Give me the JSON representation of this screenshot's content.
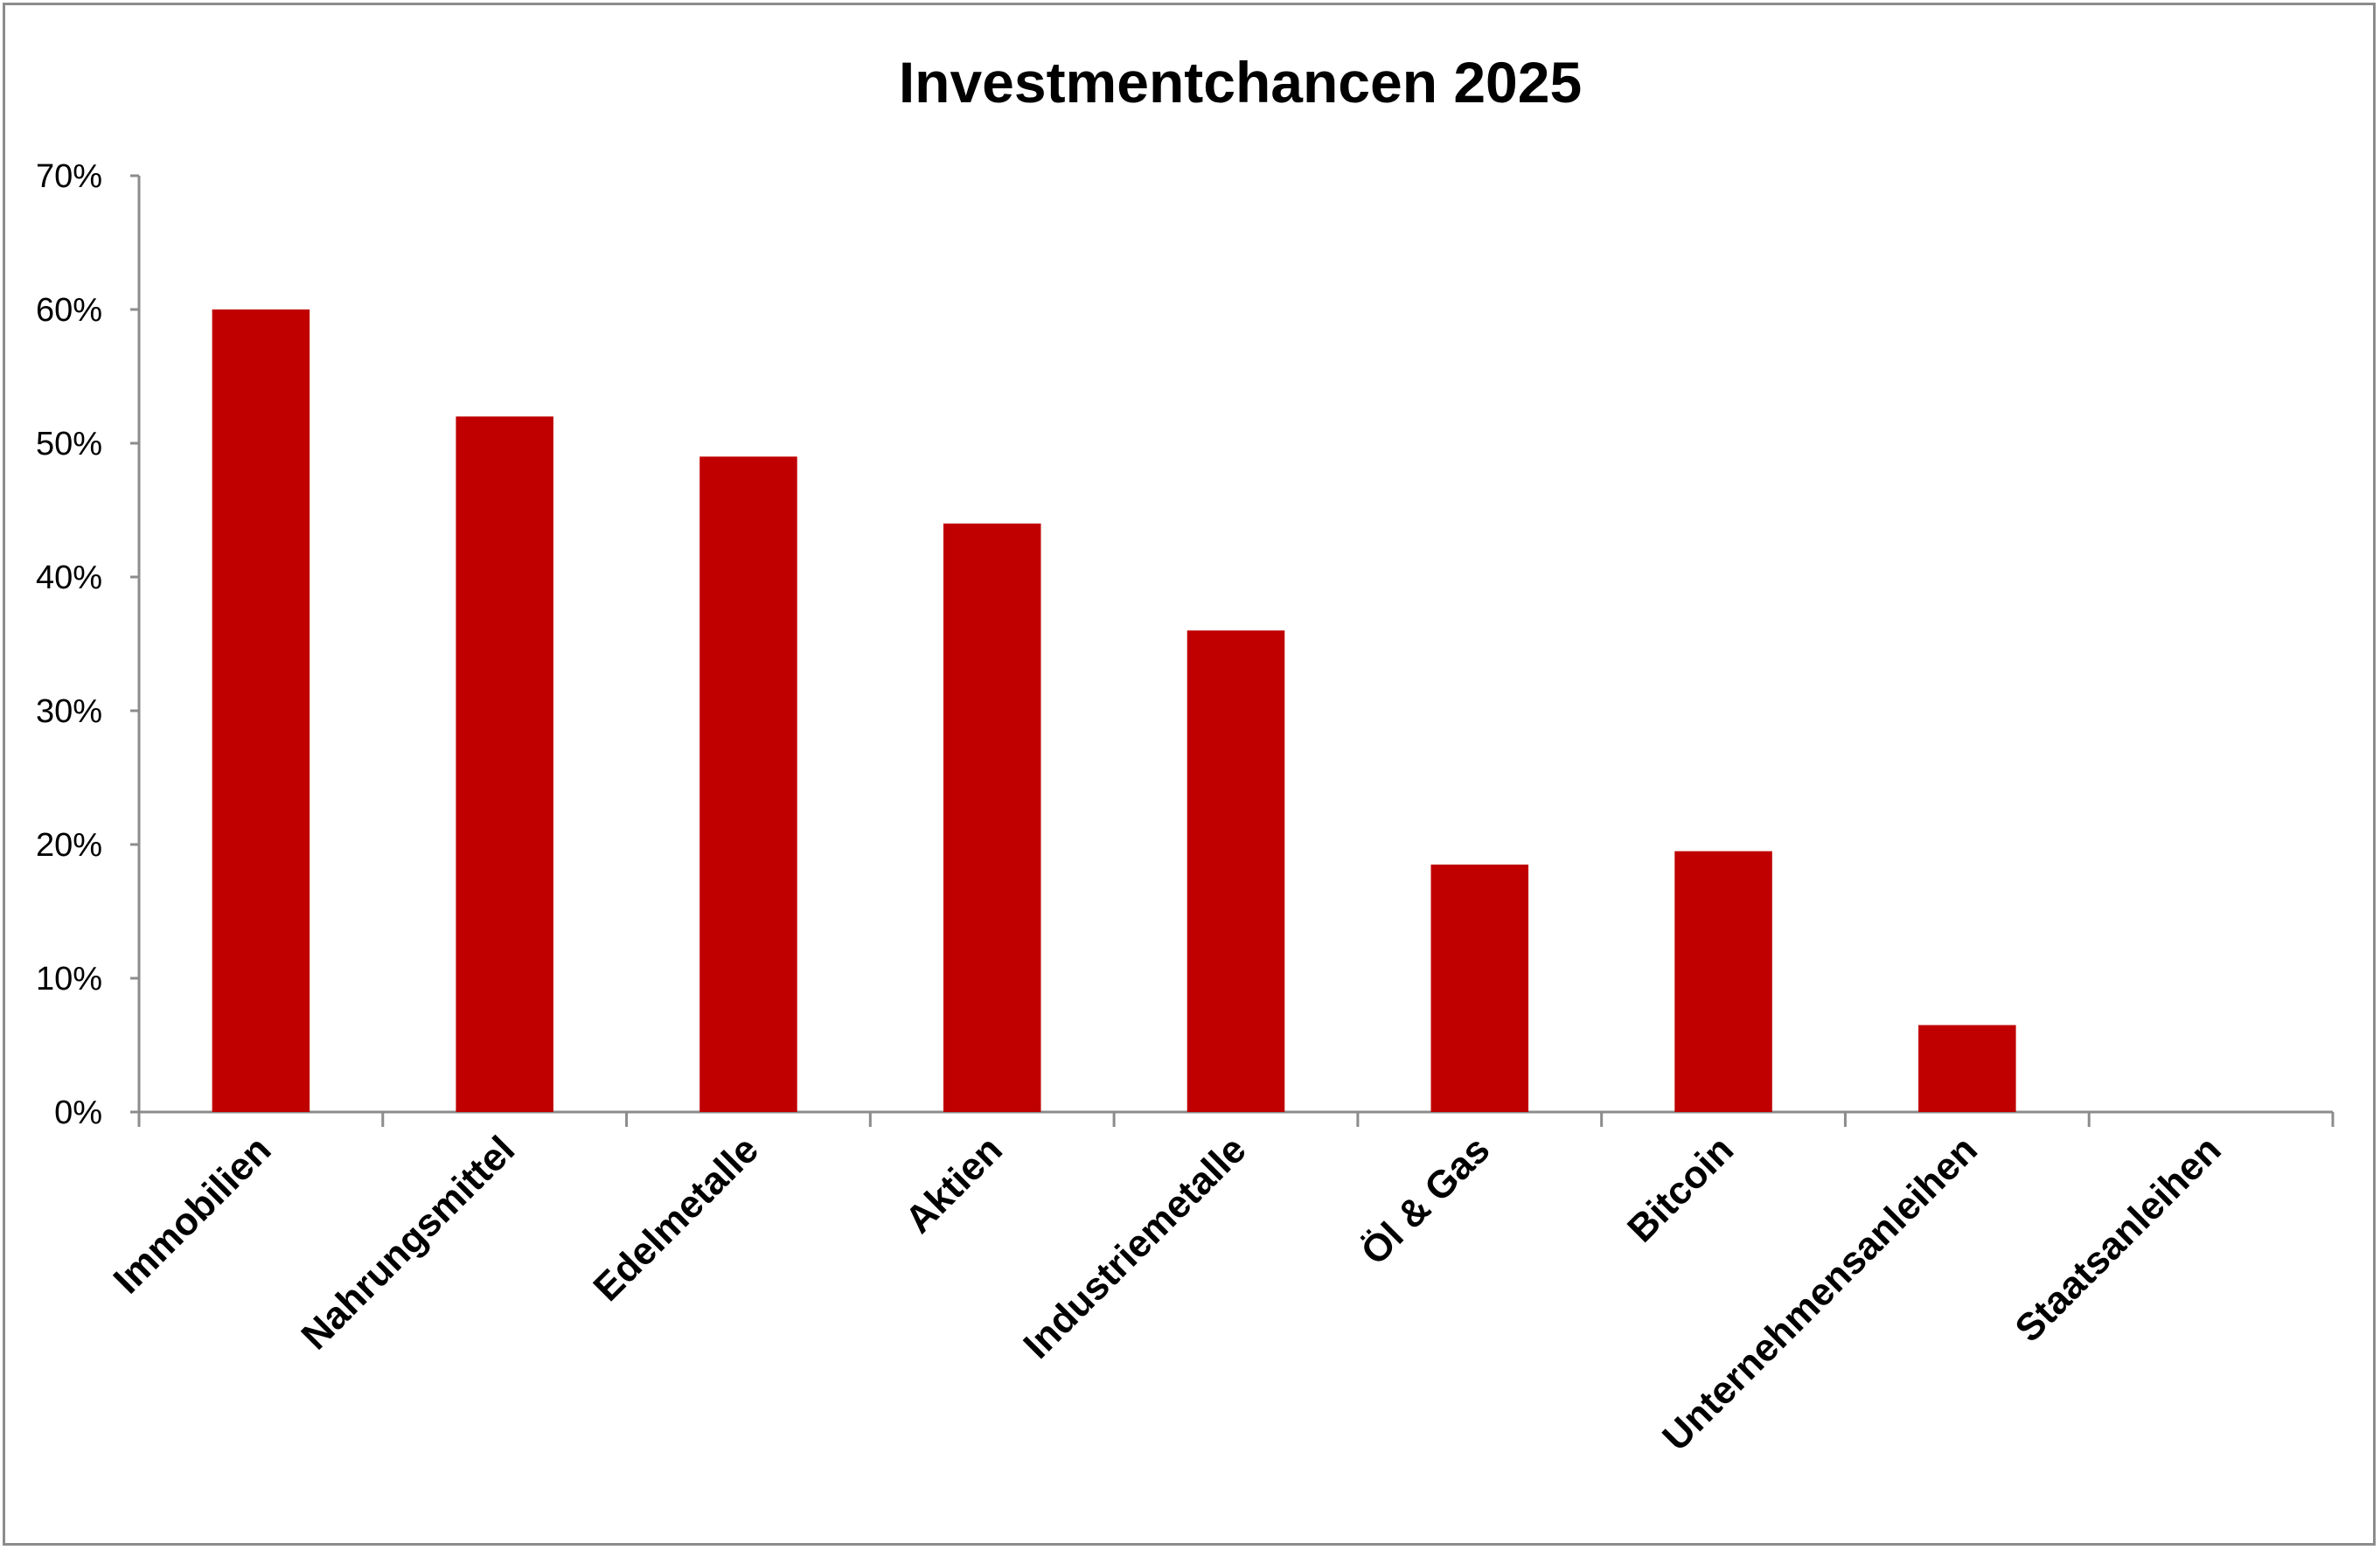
{
  "chart_data": {
    "type": "bar",
    "title": "Investmentchancen 2025",
    "xlabel": "",
    "ylabel": "",
    "categories": [
      "Immobilien",
      "Nahrungsmittel",
      "Edelmetalle",
      "Aktien",
      "Industriemetalle",
      "Öl & Gas",
      "Bitcoin",
      "Unternehmensanleihen",
      "Staatsanleihen"
    ],
    "values": [
      60,
      52,
      49,
      44,
      36,
      18.5,
      19.5,
      6.5,
      0
    ],
    "ylim": [
      0,
      70
    ],
    "yticks": [
      0,
      10,
      20,
      30,
      40,
      50,
      60,
      70
    ],
    "ytick_labels": [
      "0%",
      "10%",
      "20%",
      "30%",
      "40%",
      "50%",
      "60%",
      "70%"
    ],
    "bar_color": "#c00000",
    "grid": false,
    "legend": "none"
  }
}
